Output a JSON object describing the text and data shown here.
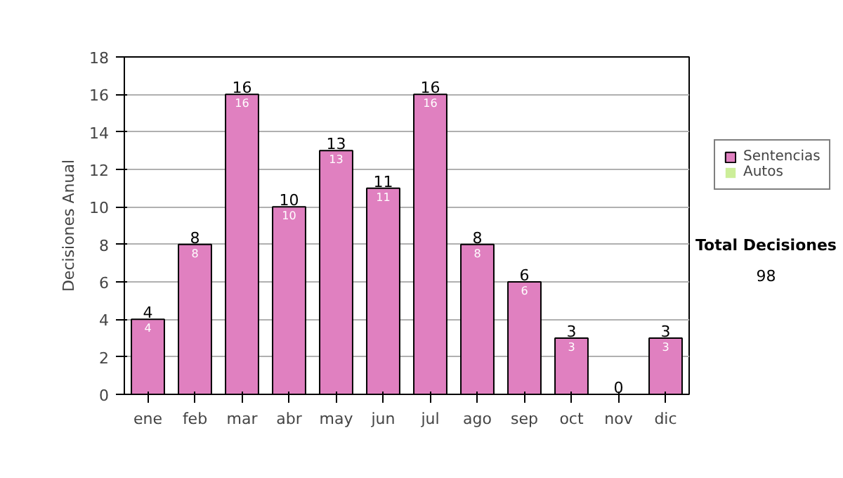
{
  "chart_data": {
    "type": "bar",
    "stacked": true,
    "ylabel": "Decisiones Anual",
    "categories": [
      "ene",
      "feb",
      "mar",
      "abr",
      "may",
      "jun",
      "jul",
      "ago",
      "sep",
      "oct",
      "nov",
      "dic"
    ],
    "series": [
      {
        "name": "Sentencias",
        "color": "#e080c0",
        "values": [
          4,
          8,
          16,
          10,
          13,
          11,
          16,
          8,
          6,
          3,
          0,
          3
        ],
        "value_labels": [
          "4",
          "8",
          "16",
          "10",
          "13",
          "11",
          "16",
          "8",
          "6",
          "3",
          null,
          "3"
        ]
      },
      {
        "name": "Autos",
        "color": "#ccee99",
        "values": [
          0,
          0,
          0,
          0,
          0,
          0,
          0,
          0,
          0,
          0,
          0,
          0
        ]
      }
    ],
    "totals": [
      "4",
      "8",
      "16",
      "10",
      "13",
      "11",
      "16",
      "8",
      "6",
      "3",
      "0",
      "3"
    ],
    "ylim": [
      0,
      18
    ],
    "yticks": [
      0,
      2,
      4,
      6,
      8,
      10,
      12,
      14,
      16,
      18
    ],
    "grid": "y",
    "legend": "right",
    "annotations": [
      "Total Decisiones",
      "98"
    ]
  }
}
